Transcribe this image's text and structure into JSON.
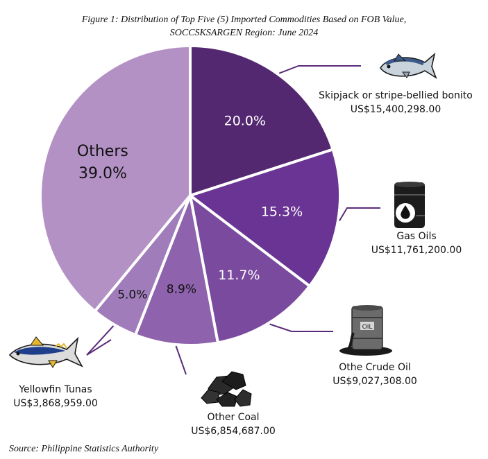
{
  "title_line1": "Figure 1: Distribution of Top Five (5) Imported Commodities Based on FOB Value,",
  "title_line2": "SOCCSKSARGEN Region: June 2024",
  "source": "Source: Philippine Statistics Authority",
  "chart_data": {
    "type": "pie",
    "start_angle_deg": 0,
    "direction": "clockwise",
    "slices": [
      {
        "key": "skipjack",
        "name": "Skipjack or stripe-bellied bonito",
        "value_label": "US$15,400,298.00",
        "percent": 20.0,
        "percent_label": "20.0%",
        "color": "#532870",
        "icon": "fish-icon"
      },
      {
        "key": "gasoil",
        "name": "Gas Oils",
        "value_label": "US$11,761,200.00",
        "percent": 15.3,
        "percent_label": "15.3%",
        "color": "#693493",
        "icon": "oil-barrel-icon"
      },
      {
        "key": "crude",
        "name": "Othe Crude Oil",
        "value_label": "US$9,027,308.00",
        "percent": 11.7,
        "percent_label": "11.7%",
        "color": "#7a4a9e",
        "icon": "leaking-barrel-icon"
      },
      {
        "key": "coal",
        "name": "Other Coal",
        "value_label": "US$6,854,687.00",
        "percent": 8.9,
        "percent_label": "8.9%",
        "color": "#8e62ac",
        "icon": "coal-icon"
      },
      {
        "key": "yellowfin",
        "name": "Yellowfin Tunas",
        "value_label": "US$3,868,959.00",
        "percent": 5.0,
        "percent_label": "5.0%",
        "color": "#a07dba",
        "icon": "tuna-icon"
      },
      {
        "key": "others",
        "name": "Others",
        "value_label": "",
        "percent": 39.0,
        "percent_label": "39.0%",
        "color": "#b391c5",
        "icon": ""
      }
    ],
    "leader_color": "#5a2a7a"
  }
}
